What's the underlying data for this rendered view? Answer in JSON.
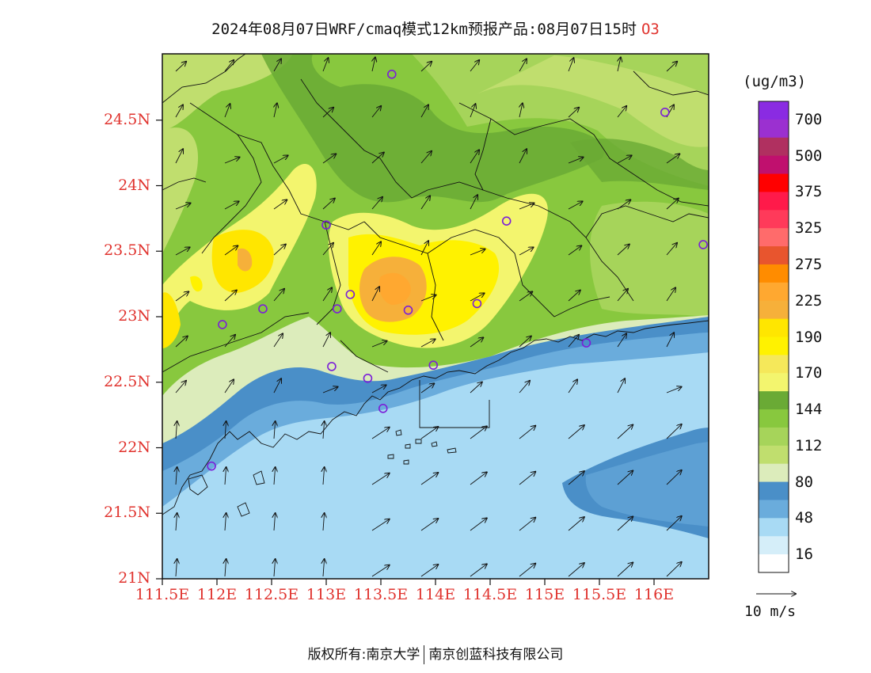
{
  "title": {
    "text": "2024年08月07日WRF/cmaq模式12km预报产品:08月07日15时",
    "variable": "O3"
  },
  "axes": {
    "lat_labels": [
      "24.5N",
      "24N",
      "23.5N",
      "23N",
      "22.5N",
      "22N",
      "21.5N",
      "21N"
    ],
    "lon_labels": [
      "111.5E",
      "112E",
      "112.5E",
      "113E",
      "113.5E",
      "114E",
      "114.5E",
      "115E",
      "115.5E",
      "116E"
    ],
    "lat_range": [
      21,
      25
    ],
    "lon_range": [
      111.5,
      116.7
    ]
  },
  "colorbar": {
    "unit": "(ug/m3)",
    "labels": [
      "700",
      "500",
      "375",
      "325",
      "275",
      "225",
      "190",
      "170",
      "144",
      "112",
      "80",
      "48",
      "16"
    ],
    "colors": [
      "#8a2be2",
      "#9b30d0",
      "#b03060",
      "#c0106e",
      "#ff0000",
      "#ff1a4a",
      "#ff3a5a",
      "#ff6b6b",
      "#e8552e",
      "#ff8c00",
      "#ffa830",
      "#f6b03a",
      "#ffe600",
      "#fff200",
      "#f5e85a",
      "#f3f56e",
      "#6aaa35",
      "#88c83e",
      "#a6d45a",
      "#c0de6e",
      "#dcecbb",
      "#4a8fc8",
      "#6aacdc",
      "#a8daf4",
      "#d5eef9",
      "#ffffff"
    ]
  },
  "wind_legend": {
    "label": "10 m/s"
  },
  "stations": [
    {
      "lon": 113.6,
      "lat": 24.85
    },
    {
      "lon": 116.1,
      "lat": 24.56
    },
    {
      "lon": 116.45,
      "lat": 23.55
    },
    {
      "lon": 113.0,
      "lat": 23.7
    },
    {
      "lon": 114.65,
      "lat": 23.73
    },
    {
      "lon": 112.42,
      "lat": 23.06
    },
    {
      "lon": 113.1,
      "lat": 23.06
    },
    {
      "lon": 113.22,
      "lat": 23.17
    },
    {
      "lon": 113.75,
      "lat": 23.05
    },
    {
      "lon": 114.38,
      "lat": 23.1
    },
    {
      "lon": 112.05,
      "lat": 22.94
    },
    {
      "lon": 113.05,
      "lat": 22.62
    },
    {
      "lon": 113.38,
      "lat": 22.53
    },
    {
      "lon": 113.98,
      "lat": 22.63
    },
    {
      "lon": 113.52,
      "lat": 22.3
    },
    {
      "lon": 115.38,
      "lat": 22.8
    },
    {
      "lon": 111.95,
      "lat": 21.86
    }
  ],
  "footer": {
    "left": "版权所有:南京大学",
    "right": "南京创蓝科技有限公司"
  }
}
